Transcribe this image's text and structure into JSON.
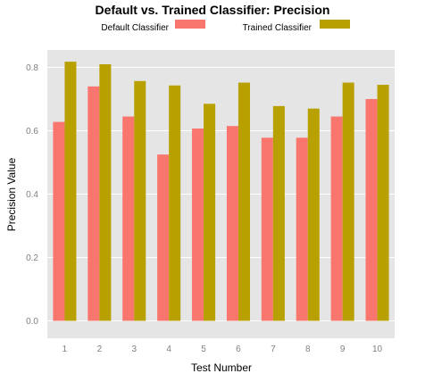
{
  "chart_data": {
    "type": "bar",
    "title": "Default vs. Trained Classifier: Precision",
    "xlabel": "Test Number",
    "ylabel": "Precision Value",
    "categories": [
      "1",
      "2",
      "3",
      "4",
      "5",
      "6",
      "7",
      "8",
      "9",
      "10"
    ],
    "series": [
      {
        "name": "Default Classifier",
        "color": "#F8766D",
        "values": [
          0.628,
          0.74,
          0.645,
          0.525,
          0.607,
          0.615,
          0.578,
          0.578,
          0.645,
          0.7
        ]
      },
      {
        "name": "Trained Classifier",
        "color": "#B8A000",
        "values": [
          0.818,
          0.81,
          0.757,
          0.743,
          0.685,
          0.752,
          0.678,
          0.67,
          0.752,
          0.745
        ]
      }
    ],
    "yticks": [
      "0.0",
      "0.2",
      "0.4",
      "0.6",
      "0.8"
    ],
    "ylim": [
      -0.055,
      0.855
    ],
    "grid": true,
    "legend_position": "top",
    "panel_color": "#E5E5E5"
  }
}
